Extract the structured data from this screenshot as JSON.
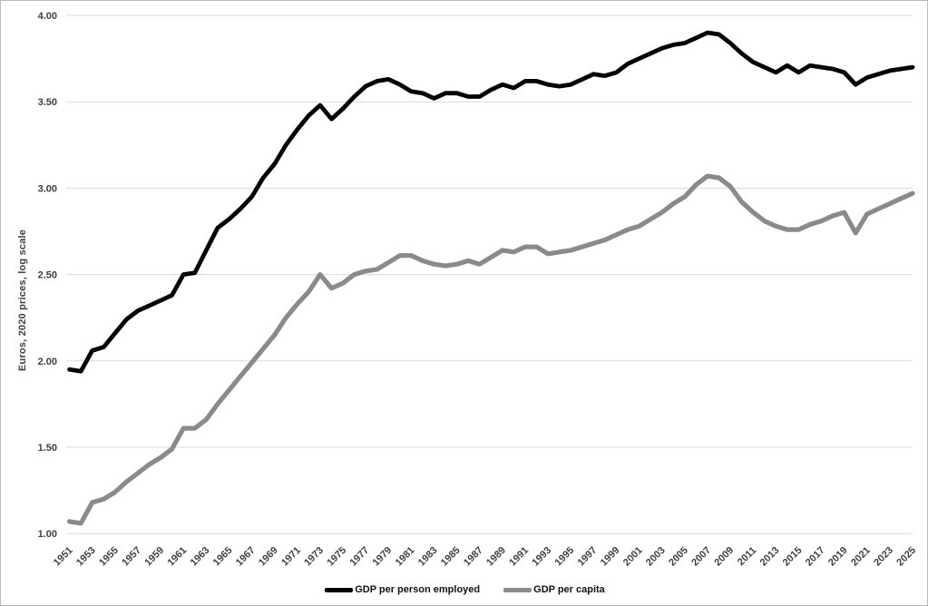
{
  "chart_data": {
    "type": "line",
    "title": "",
    "ylabel": "Euros, 2020 prices, log scale",
    "xlabel": "",
    "xlim": [
      1951,
      2025
    ],
    "ylim": [
      1.0,
      4.0
    ],
    "grid": "horizontal",
    "legend_position": "bottom-center",
    "y_tick_values": [
      4.0,
      3.5,
      3.0,
      2.5,
      2.0,
      1.5,
      1.0
    ],
    "y_tick_labels": [
      "4.00",
      "3.50",
      "3.00",
      "2.50",
      "2.00",
      "1.50",
      "1.00"
    ],
    "x_tick_labels": [
      "1951",
      "1953",
      "1955",
      "1957",
      "1959",
      "1961",
      "1963",
      "1965",
      "1967",
      "1969",
      "1971",
      "1973",
      "1975",
      "1977",
      "1979",
      "1981",
      "1983",
      "1985",
      "1987",
      "1989",
      "1991",
      "1993",
      "1995",
      "1997",
      "1999",
      "2001",
      "2003",
      "2005",
      "2007",
      "2009",
      "2011",
      "2013",
      "2015",
      "2017",
      "2019",
      "2021",
      "2023",
      "2025"
    ],
    "years": [
      1951,
      1952,
      1953,
      1954,
      1955,
      1956,
      1957,
      1958,
      1959,
      1960,
      1961,
      1962,
      1963,
      1964,
      1965,
      1966,
      1967,
      1968,
      1969,
      1970,
      1971,
      1972,
      1973,
      1974,
      1975,
      1976,
      1977,
      1978,
      1979,
      1980,
      1981,
      1982,
      1983,
      1984,
      1985,
      1986,
      1987,
      1988,
      1989,
      1990,
      1991,
      1992,
      1993,
      1994,
      1995,
      1996,
      1997,
      1998,
      1999,
      2000,
      2001,
      2002,
      2003,
      2004,
      2005,
      2006,
      2007,
      2008,
      2009,
      2010,
      2011,
      2012,
      2013,
      2014,
      2015,
      2016,
      2017,
      2018,
      2019,
      2020,
      2021,
      2022,
      2023,
      2024,
      2025
    ],
    "series": [
      {
        "name": "GDP per person employed",
        "color": "#000000",
        "stroke_width": 4.8,
        "values": [
          1.95,
          1.94,
          2.06,
          2.08,
          2.16,
          2.24,
          2.29,
          2.32,
          2.35,
          2.38,
          2.5,
          2.51,
          2.64,
          2.77,
          2.82,
          2.88,
          2.95,
          3.06,
          3.14,
          3.25,
          3.34,
          3.42,
          3.48,
          3.4,
          3.46,
          3.53,
          3.59,
          3.62,
          3.63,
          3.6,
          3.56,
          3.55,
          3.52,
          3.55,
          3.55,
          3.53,
          3.53,
          3.57,
          3.6,
          3.58,
          3.62,
          3.62,
          3.6,
          3.59,
          3.6,
          3.63,
          3.66,
          3.65,
          3.67,
          3.72,
          3.75,
          3.78,
          3.81,
          3.83,
          3.84,
          3.87,
          3.9,
          3.89,
          3.84,
          3.78,
          3.73,
          3.7,
          3.67,
          3.71,
          3.67,
          3.71,
          3.7,
          3.69,
          3.67,
          3.6,
          3.64,
          3.66,
          3.68,
          3.69,
          3.7
        ]
      },
      {
        "name": "GDP per capita",
        "color": "#8a8a8a",
        "stroke_width": 5.2,
        "values": [
          1.07,
          1.06,
          1.18,
          1.2,
          1.24,
          1.3,
          1.35,
          1.4,
          1.44,
          1.49,
          1.61,
          1.61,
          1.66,
          1.75,
          1.83,
          1.91,
          1.99,
          2.07,
          2.15,
          2.25,
          2.33,
          2.4,
          2.5,
          2.42,
          2.45,
          2.5,
          2.52,
          2.53,
          2.57,
          2.61,
          2.61,
          2.58,
          2.56,
          2.55,
          2.56,
          2.58,
          2.56,
          2.6,
          2.64,
          2.63,
          2.66,
          2.66,
          2.62,
          2.63,
          2.64,
          2.66,
          2.68,
          2.7,
          2.73,
          2.76,
          2.78,
          2.82,
          2.86,
          2.91,
          2.95,
          3.02,
          3.07,
          3.06,
          3.01,
          2.92,
          2.86,
          2.81,
          2.78,
          2.76,
          2.76,
          2.79,
          2.81,
          2.84,
          2.86,
          2.74,
          2.85,
          2.88,
          2.91,
          2.94,
          2.97
        ]
      }
    ],
    "colors": {
      "gridline": "#d9d9d9",
      "axis_text": "#3f3f3f",
      "frame": "#b9b9b9"
    }
  }
}
